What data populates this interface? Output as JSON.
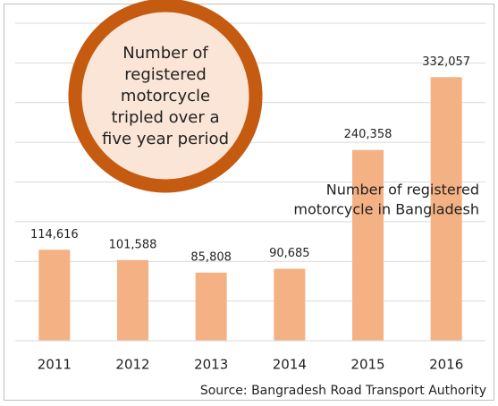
{
  "chart_data": {
    "type": "bar",
    "categories": [
      "2011",
      "2012",
      "2013",
      "2014",
      "2015",
      "2016"
    ],
    "values": [
      114616,
      101588,
      85808,
      90685,
      240358,
      332057
    ],
    "value_labels": [
      "114,616",
      "101,588",
      "85,808",
      "90,685",
      "240,358",
      "332,057"
    ],
    "color": "#f4b183",
    "ylim": [
      0,
      400000
    ],
    "yticks": [
      0,
      50000,
      100000,
      150000,
      200000,
      250000,
      300000,
      350000,
      400000
    ],
    "grid": true,
    "callout": [
      "Number of",
      "registered",
      "motorcycle",
      "tripled over a",
      "five year period"
    ],
    "annotation": [
      "Number of registered",
      "motorcycle in Bangladesh"
    ],
    "source": "Source: Bangradesh Road Transport Authority"
  }
}
